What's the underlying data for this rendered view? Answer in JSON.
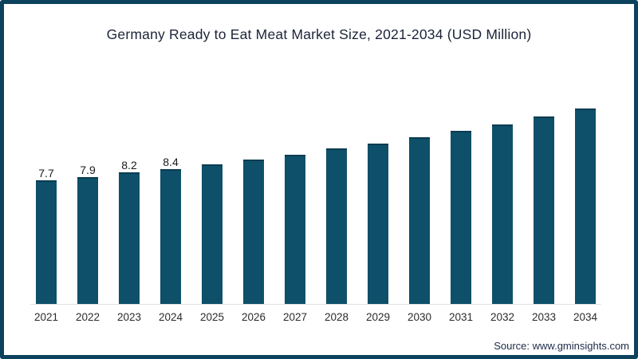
{
  "frame": {
    "border_color": "#0c425d"
  },
  "source_label": "Source: www.gminsights.com",
  "chart_data": {
    "type": "bar",
    "title": "Germany Ready to Eat Meat Market Size, 2021-2034 (USD Million)",
    "categories": [
      "2021",
      "2022",
      "2023",
      "2024",
      "2025",
      "2026",
      "2027",
      "2028",
      "2029",
      "2030",
      "2031",
      "2032",
      "2033",
      "2034"
    ],
    "values": [
      7.7,
      7.9,
      8.2,
      8.4,
      8.7,
      9.0,
      9.3,
      9.7,
      10.0,
      10.4,
      10.8,
      11.2,
      11.7,
      12.2
    ],
    "data_labels": [
      "7.7",
      "7.9",
      "8.2",
      "8.4",
      null,
      null,
      null,
      null,
      null,
      null,
      null,
      null,
      null,
      null
    ],
    "bar_color": "#0e5069",
    "bar_top_edge_color": "#0a3c51",
    "axis_line_color": "#e3e3e3",
    "xlabel": "",
    "ylabel": "",
    "ylim": [
      0,
      12.5
    ],
    "grid": false,
    "legend": false
  }
}
